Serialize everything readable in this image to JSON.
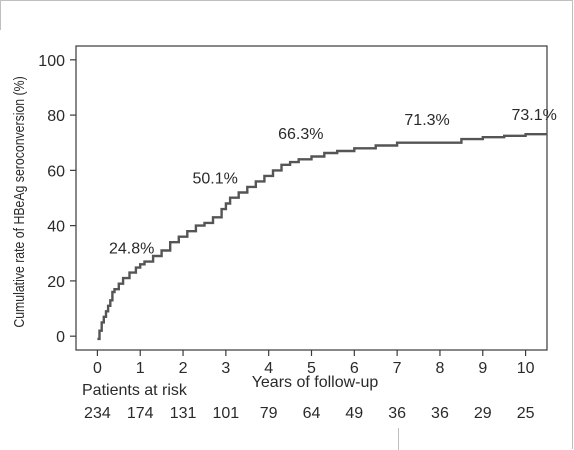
{
  "chart_data": {
    "type": "line",
    "step": true,
    "xlabel": "Years of follow-up",
    "ylabel": "Cumulative rate of HBeAg seroconversion (%)",
    "xlim": [
      -0.5,
      10.5
    ],
    "ylim": [
      -5,
      105
    ],
    "x_ticks": [
      0,
      1,
      2,
      3,
      4,
      5,
      6,
      7,
      8,
      9,
      10
    ],
    "y_ticks": [
      0,
      20,
      40,
      60,
      80,
      100
    ],
    "grid": false,
    "line_color": "#555555",
    "series": [
      {
        "x": [
          0,
          0.05,
          0.1,
          0.15,
          0.2,
          0.25,
          0.3,
          0.35,
          0.4,
          0.5,
          0.6,
          0.75,
          0.9,
          1.0,
          1.1,
          1.3,
          1.5,
          1.7,
          1.9,
          2.1,
          2.3,
          2.5,
          2.7,
          2.9,
          3.0,
          3.1,
          3.3,
          3.5,
          3.7,
          3.9,
          4.1,
          4.3,
          4.5,
          4.7,
          5.0,
          5.3,
          5.6,
          6.0,
          6.5,
          7.0,
          7.5,
          8.0,
          8.5,
          9.0,
          9.5,
          10.0,
          10.5
        ],
        "y": [
          -1,
          2,
          5,
          7,
          9,
          11,
          13,
          16,
          17,
          19,
          21,
          23,
          24.8,
          26,
          27,
          29,
          31,
          34,
          36,
          38,
          40,
          41,
          43,
          46,
          48,
          50.1,
          52,
          54,
          56,
          58,
          60,
          62,
          63,
          64,
          65,
          66.3,
          67,
          68,
          69,
          70,
          70,
          70,
          71.3,
          72,
          72.5,
          73.1,
          73.1
        ]
      }
    ],
    "annotations": [
      {
        "x": 0.8,
        "y": 24.8,
        "text": "24.8%"
      },
      {
        "x": 2.75,
        "y": 50.1,
        "text": "50.1%"
      },
      {
        "x": 4.75,
        "y": 66.3,
        "text": "66.3%"
      },
      {
        "x": 7.7,
        "y": 71.3,
        "text": "71.3%"
      },
      {
        "x": 10.2,
        "y": 73.1,
        "text": "73.1%"
      }
    ],
    "risk_table": {
      "label": "Patients at risk",
      "values": [
        234,
        174,
        131,
        101,
        79,
        64,
        49,
        36,
        36,
        29,
        25
      ]
    }
  }
}
